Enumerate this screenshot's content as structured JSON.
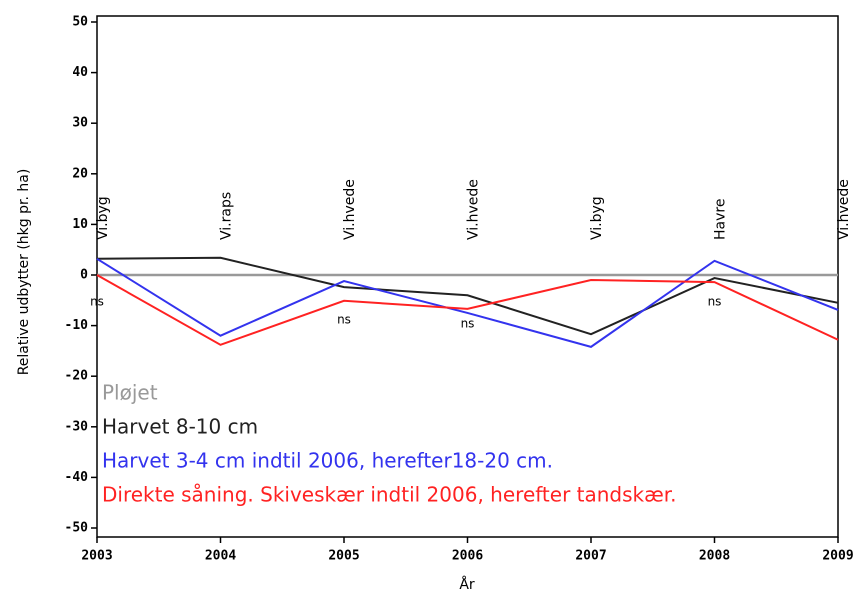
{
  "chart_data": {
    "type": "line",
    "x": [
      2003,
      2004,
      2005,
      2006,
      2007,
      2008,
      2009
    ],
    "xlim": [
      2003,
      2009
    ],
    "xticks": [
      2003,
      2004,
      2005,
      2006,
      2007,
      2008,
      2009
    ],
    "ylim": [
      -50,
      50
    ],
    "yticks": [
      -50,
      -40,
      -30,
      -20,
      -10,
      0,
      10,
      20,
      30,
      40,
      50
    ],
    "y_label": "Relative udbytter (hkg pr. ha)",
    "x_label": "År",
    "series": [
      {
        "name": "Pløjet",
        "color": "#999999",
        "values": [
          0,
          0,
          0,
          0,
          0,
          0,
          0
        ]
      },
      {
        "name": "Harvet 8-10 cm",
        "color": "#222222",
        "values": [
          3.2,
          3.4,
          -2.4,
          -4,
          -11.7,
          -0.6,
          -5.5
        ]
      },
      {
        "name": "Harvet 3-4 cm indtil 2006, herefter18-20 cm.",
        "color": "#3333ee",
        "values": [
          3.2,
          -12,
          -1.2,
          -7.5,
          -14.2,
          2.8,
          -6.9
        ]
      },
      {
        "name": "Direkte såning. Skiveskær indtil 2006, herefter tandskær.",
        "color": "#ff2222",
        "values": [
          0,
          -13.8,
          -5.1,
          -6.7,
          -1,
          -1.4,
          -12.8
        ]
      }
    ],
    "crops": [
      "Vi.byg",
      "Vi.raps",
      "Vi.hvede",
      "Vi.hvede",
      "Vi.byg",
      "Havre",
      "Vi.hvede"
    ],
    "annotations": [
      {
        "x": 2003,
        "text": "ns"
      },
      {
        "x": 2005,
        "text": "ns"
      },
      {
        "x": 2006,
        "text": "ns"
      },
      {
        "x": 2008,
        "text": "ns"
      }
    ]
  }
}
